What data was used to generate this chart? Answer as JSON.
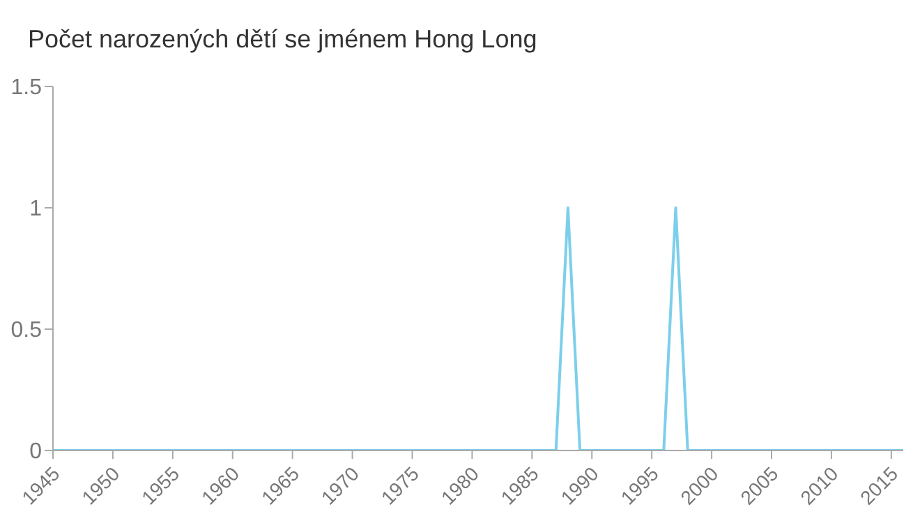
{
  "chart_data": {
    "type": "line",
    "title": "Počet narozených dětí se jménem Hong Long",
    "x": [
      1945,
      1946,
      1947,
      1948,
      1949,
      1950,
      1951,
      1952,
      1953,
      1954,
      1955,
      1956,
      1957,
      1958,
      1959,
      1960,
      1961,
      1962,
      1963,
      1964,
      1965,
      1966,
      1967,
      1968,
      1969,
      1970,
      1971,
      1972,
      1973,
      1974,
      1975,
      1976,
      1977,
      1978,
      1979,
      1980,
      1981,
      1982,
      1983,
      1984,
      1985,
      1986,
      1987,
      1988,
      1989,
      1990,
      1991,
      1992,
      1993,
      1994,
      1995,
      1996,
      1997,
      1998,
      1999,
      2000,
      2001,
      2002,
      2003,
      2004,
      2005,
      2006,
      2007,
      2008,
      2009,
      2010,
      2011,
      2012,
      2013,
      2014,
      2015,
      2016
    ],
    "series": [
      {
        "color": "#7ccfeb",
        "values": [
          0,
          0,
          0,
          0,
          0,
          0,
          0,
          0,
          0,
          0,
          0,
          0,
          0,
          0,
          0,
          0,
          0,
          0,
          0,
          0,
          0,
          0,
          0,
          0,
          0,
          0,
          0,
          0,
          0,
          0,
          0,
          0,
          0,
          0,
          0,
          0,
          0,
          0,
          0,
          0,
          0,
          0,
          0,
          1,
          0,
          0,
          0,
          0,
          0,
          0,
          0,
          0,
          1,
          0,
          0,
          0,
          0,
          0,
          0,
          0,
          0,
          0,
          0,
          0,
          0,
          0,
          0,
          0,
          0,
          0,
          0,
          0
        ]
      }
    ],
    "xlim": [
      1945,
      2016
    ],
    "xticks": [
      1945,
      1950,
      1955,
      1960,
      1965,
      1970,
      1975,
      1980,
      1985,
      1990,
      1995,
      2000,
      2005,
      2010,
      2015
    ],
    "ylim": [
      0,
      1.5
    ],
    "yticks": [
      0,
      0.5,
      1,
      1.5
    ],
    "grid": false,
    "legend": false,
    "marker": "none",
    "line_style": "solid"
  }
}
